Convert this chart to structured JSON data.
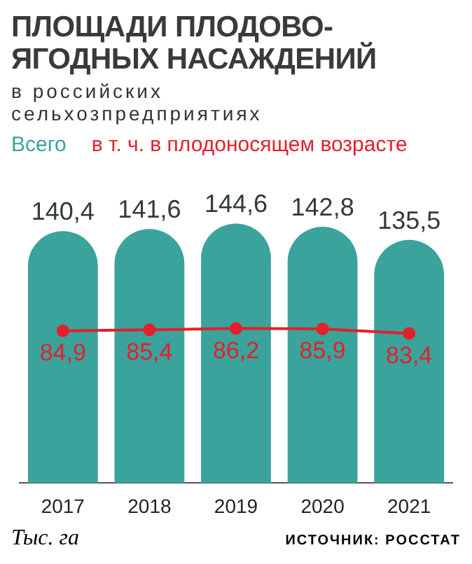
{
  "chart_data": {
    "type": "bar",
    "title": "ПЛОЩАДИ ПЛОДОВО-ЯГОДНЫХ НАСАЖДЕНИЙ",
    "subtitle": "в российских сельхозпредприятиях",
    "categories": [
      "2017",
      "2018",
      "2019",
      "2020",
      "2021"
    ],
    "series": [
      {
        "name": "Всего",
        "color": "#3aa39c",
        "values": [
          140.4,
          141.6,
          144.6,
          142.8,
          135.5
        ],
        "value_labels": [
          "140,4",
          "141,6",
          "144,6",
          "142,8",
          "135,5"
        ]
      },
      {
        "name": "в т. ч. в плодоносящем возрасте",
        "type": "line",
        "color": "#e3202b",
        "values": [
          84.9,
          85.4,
          86.2,
          85.9,
          83.4
        ],
        "value_labels": [
          "84,9",
          "85,4",
          "86,2",
          "85,9",
          "83,4"
        ]
      }
    ],
    "legend": "top left",
    "marker": "circle",
    "grid": false,
    "annotations": [
      "Тыс. га",
      "ИСТОЧНИК: РОССТАТ"
    ]
  }
}
